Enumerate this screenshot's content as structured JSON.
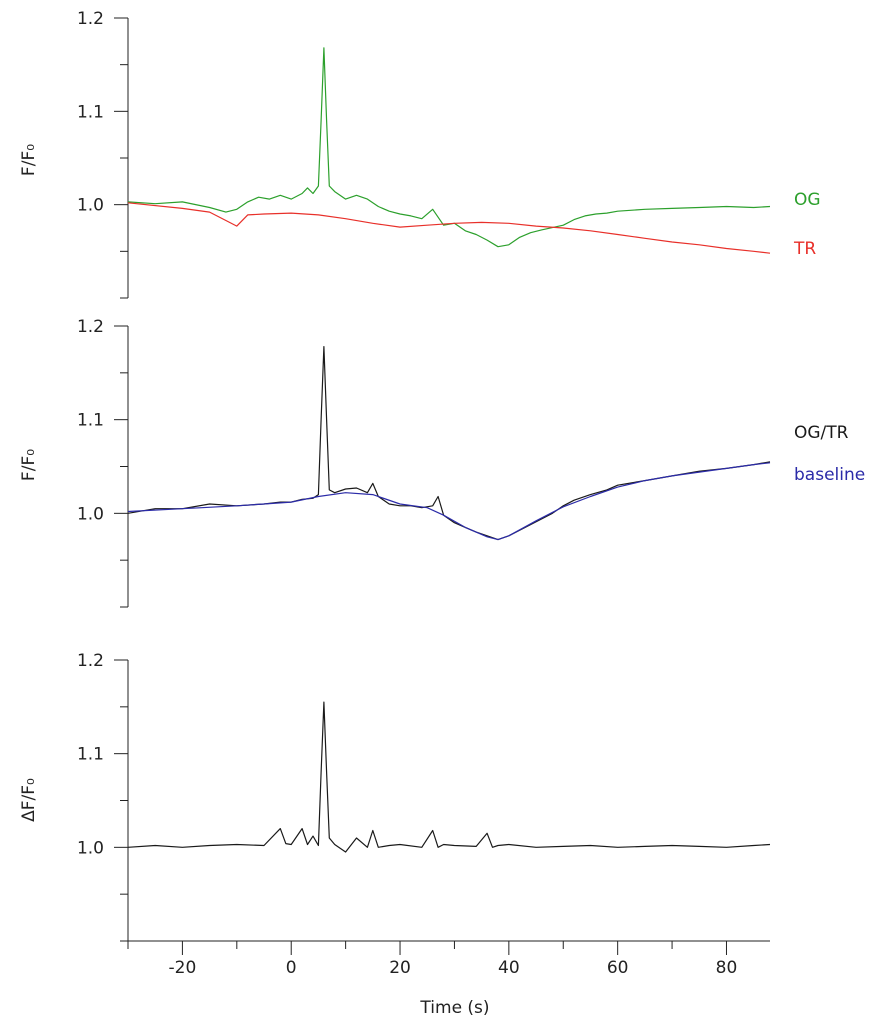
{
  "chart_data": [
    {
      "type": "line",
      "ylabel": "F/F₀",
      "ylim": [
        0.9,
        1.2
      ],
      "yticks": [
        "1.0",
        "1.1",
        "1.2"
      ],
      "xlim": [
        -30,
        88
      ],
      "grid": false,
      "legend_placement": "right",
      "series": [
        {
          "name": "OG",
          "color": "#2ca02c",
          "x": [
            -30,
            -25,
            -20,
            -15,
            -12,
            -10,
            -8,
            -6,
            -4,
            -2,
            0,
            2,
            3,
            4,
            5,
            5.5,
            6,
            6.5,
            7,
            8,
            10,
            12,
            14,
            16,
            18,
            20,
            22,
            24,
            26,
            28,
            30,
            32,
            34,
            36,
            38,
            40,
            42,
            44,
            46,
            50,
            52,
            54,
            56,
            58,
            60,
            65,
            70,
            75,
            80,
            85,
            88
          ],
          "y": [
            1.003,
            1.001,
            1.003,
            0.997,
            0.992,
            0.995,
            1.003,
            1.008,
            1.006,
            1.01,
            1.006,
            1.012,
            1.018,
            1.012,
            1.02,
            1.09,
            1.168,
            1.09,
            1.02,
            1.014,
            1.006,
            1.01,
            1.006,
            0.998,
            0.993,
            0.99,
            0.988,
            0.985,
            0.995,
            0.978,
            0.98,
            0.972,
            0.968,
            0.962,
            0.955,
            0.957,
            0.965,
            0.97,
            0.973,
            0.978,
            0.984,
            0.988,
            0.99,
            0.991,
            0.993,
            0.995,
            0.996,
            0.997,
            0.998,
            0.997,
            0.998
          ]
        },
        {
          "name": "TR",
          "color": "#e8302a",
          "x": [
            -30,
            -20,
            -15,
            -12,
            -10,
            -8,
            -5,
            0,
            5,
            10,
            15,
            20,
            25,
            30,
            35,
            40,
            45,
            50,
            55,
            60,
            65,
            70,
            75,
            80,
            85,
            88
          ],
          "y": [
            1.002,
            0.996,
            0.992,
            0.983,
            0.977,
            0.989,
            0.99,
            0.991,
            0.989,
            0.985,
            0.98,
            0.976,
            0.978,
            0.98,
            0.981,
            0.98,
            0.977,
            0.975,
            0.972,
            0.968,
            0.964,
            0.96,
            0.957,
            0.953,
            0.95,
            0.948
          ]
        }
      ]
    },
    {
      "type": "line",
      "ylabel": "F/F₀",
      "ylim": [
        0.9,
        1.2
      ],
      "yticks": [
        "1.0",
        "1.1",
        "1.2"
      ],
      "xlim": [
        -30,
        88
      ],
      "grid": false,
      "legend_placement": "right",
      "series": [
        {
          "name": "OG/TR",
          "color": "#1a1a1a",
          "x": [
            -30,
            -25,
            -20,
            -15,
            -10,
            -5,
            -2,
            0,
            2,
            4,
            5,
            5.5,
            6,
            6.5,
            7,
            8,
            10,
            12,
            14,
            15,
            16,
            18,
            20,
            22,
            24,
            26,
            27,
            28,
            30,
            32,
            34,
            36,
            38,
            40,
            42,
            44,
            46,
            48,
            50,
            52,
            55,
            58,
            60,
            65,
            70,
            75,
            80,
            85,
            88
          ],
          "y": [
            1.0,
            1.005,
            1.005,
            1.01,
            1.008,
            1.01,
            1.012,
            1.012,
            1.015,
            1.016,
            1.02,
            1.1,
            1.178,
            1.1,
            1.025,
            1.022,
            1.026,
            1.027,
            1.022,
            1.032,
            1.018,
            1.01,
            1.008,
            1.008,
            1.006,
            1.008,
            1.018,
            0.998,
            0.99,
            0.985,
            0.98,
            0.976,
            0.972,
            0.976,
            0.982,
            0.988,
            0.994,
            1.0,
            1.008,
            1.014,
            1.02,
            1.025,
            1.03,
            1.035,
            1.04,
            1.045,
            1.048,
            1.052,
            1.055
          ]
        },
        {
          "name": "baseline",
          "color": "#2b2ba8",
          "x": [
            -30,
            -20,
            -10,
            -5,
            0,
            5,
            10,
            15,
            20,
            25,
            28,
            32,
            36,
            38,
            40,
            45,
            50,
            55,
            60,
            65,
            70,
            75,
            80,
            85,
            88
          ],
          "y": [
            1.002,
            1.005,
            1.008,
            1.01,
            1.012,
            1.018,
            1.022,
            1.02,
            1.01,
            1.006,
            0.998,
            0.985,
            0.975,
            0.972,
            0.976,
            0.992,
            1.007,
            1.018,
            1.028,
            1.035,
            1.04,
            1.044,
            1.048,
            1.052,
            1.054
          ]
        }
      ]
    },
    {
      "type": "line",
      "ylabel": "ΔF/F₀",
      "ylim": [
        0.9,
        1.2
      ],
      "yticks": [
        "1.0",
        "1.1",
        "1.2"
      ],
      "xlabel": "Time (s)",
      "xlim": [
        -30,
        88
      ],
      "xticks": [
        "-20",
        "0",
        "20",
        "40",
        "60",
        "80"
      ],
      "grid": false,
      "series": [
        {
          "color": "#1a1a1a",
          "x": [
            -30,
            -25,
            -20,
            -15,
            -10,
            -5,
            -2,
            -1,
            0,
            2,
            3,
            4,
            5,
            5.5,
            6,
            6.5,
            7,
            8,
            10,
            12,
            14,
            15,
            16,
            18,
            20,
            24,
            26,
            27,
            28,
            30,
            34,
            36,
            37,
            38,
            40,
            45,
            50,
            55,
            60,
            65,
            70,
            75,
            80,
            85,
            88
          ],
          "y": [
            1.0,
            1.002,
            1.0,
            1.002,
            1.003,
            1.002,
            1.02,
            1.004,
            1.003,
            1.02,
            1.003,
            1.012,
            1.002,
            1.08,
            1.155,
            1.08,
            1.01,
            1.003,
            0.995,
            1.01,
            1.0,
            1.018,
            1.0,
            1.002,
            1.003,
            1.0,
            1.018,
            1.0,
            1.003,
            1.002,
            1.001,
            1.015,
            1.0,
            1.002,
            1.003,
            1.0,
            1.001,
            1.002,
            1.0,
            1.001,
            1.002,
            1.001,
            1.0,
            1.002,
            1.003
          ]
        }
      ]
    }
  ]
}
